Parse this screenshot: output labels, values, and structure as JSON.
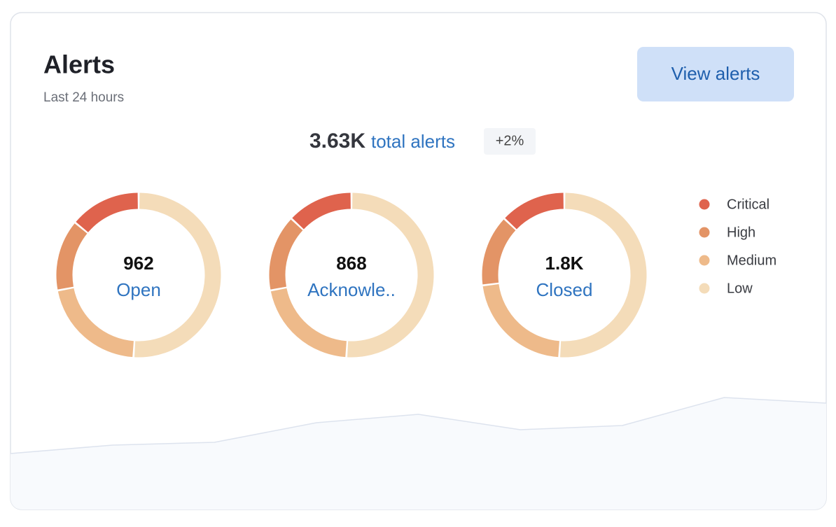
{
  "header": {
    "title": "Alerts",
    "subtitle": "Last 24 hours",
    "button": "View alerts"
  },
  "summary": {
    "total": "3.63K",
    "label": "total alerts",
    "change": "+2%"
  },
  "chart_data": [
    {
      "type": "donut",
      "categories": [
        "Open",
        "Acknowle..",
        "Closed"
      ],
      "center_labels": [
        "962",
        "868",
        "1.8K"
      ],
      "series": [
        {
          "name": "Critical",
          "color": "#df634d",
          "values": [
            14,
            13,
            13
          ]
        },
        {
          "name": "High",
          "color": "#e39466",
          "values": [
            14,
            15,
            14
          ]
        },
        {
          "name": "Medium",
          "color": "#eeba8a",
          "values": [
            21,
            21,
            22
          ]
        },
        {
          "name": "Low",
          "color": "#f4dcb9",
          "values": [
            51,
            51,
            51
          ]
        }
      ]
    },
    {
      "type": "area",
      "color": "#f8fafd",
      "line_color": "#dde3ee",
      "values": [
        40,
        46,
        48,
        62,
        68,
        57,
        60,
        80,
        76
      ],
      "ylim": [
        0,
        100
      ]
    }
  ]
}
